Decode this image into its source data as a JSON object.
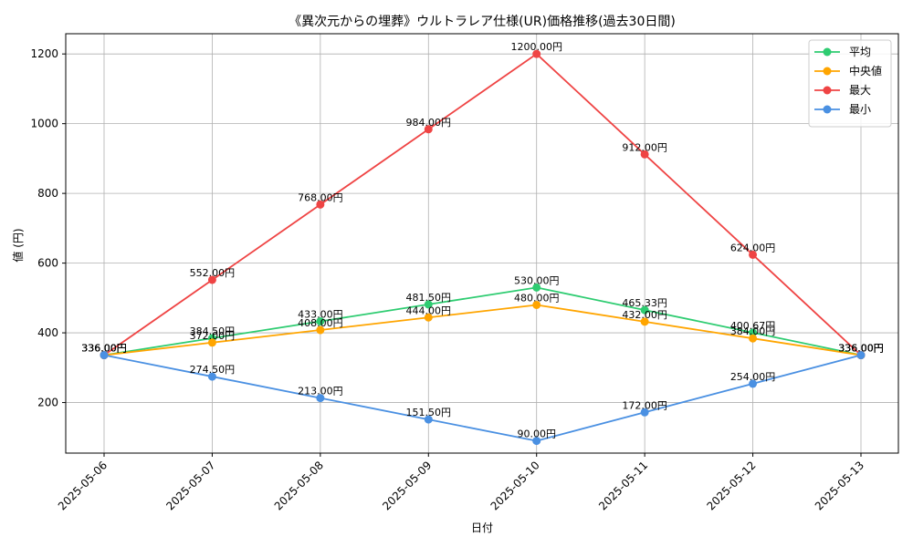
{
  "chart_data": {
    "type": "line",
    "title": "《異次元からの埋葬》ウルトラレア仕様(UR)価格推移(過去30日間)",
    "xlabel": "日付",
    "ylabel": "値 (円)",
    "categories": [
      "2025-05-06",
      "2025-05-07",
      "2025-05-08",
      "2025-05-09",
      "2025-05-10",
      "2025-05-11",
      "2025-05-12",
      "2025-05-13"
    ],
    "ylim": [
      55,
      1258
    ],
    "yticks": [
      200,
      400,
      600,
      800,
      1000,
      1200
    ],
    "grid": true,
    "legend_position": "top-right",
    "value_suffix": "円",
    "series": [
      {
        "name": "平均",
        "color": "#2ecc71",
        "values": [
          336.0,
          384.5,
          433.0,
          481.5,
          530.0,
          465.33,
          400.67,
          336.0
        ]
      },
      {
        "name": "中央値",
        "color": "#ffa500",
        "values": [
          336.0,
          372.0,
          408.0,
          444.0,
          480.0,
          432.0,
          384.0,
          336.0
        ]
      },
      {
        "name": "最大",
        "color": "#ef4444",
        "values": [
          336.0,
          552.0,
          768.0,
          984.0,
          1200.0,
          912.0,
          624.0,
          336.0
        ]
      },
      {
        "name": "最小",
        "color": "#4a90e2",
        "values": [
          336.0,
          274.5,
          213.0,
          151.5,
          90.0,
          172.0,
          254.0,
          336.0
        ]
      }
    ]
  }
}
